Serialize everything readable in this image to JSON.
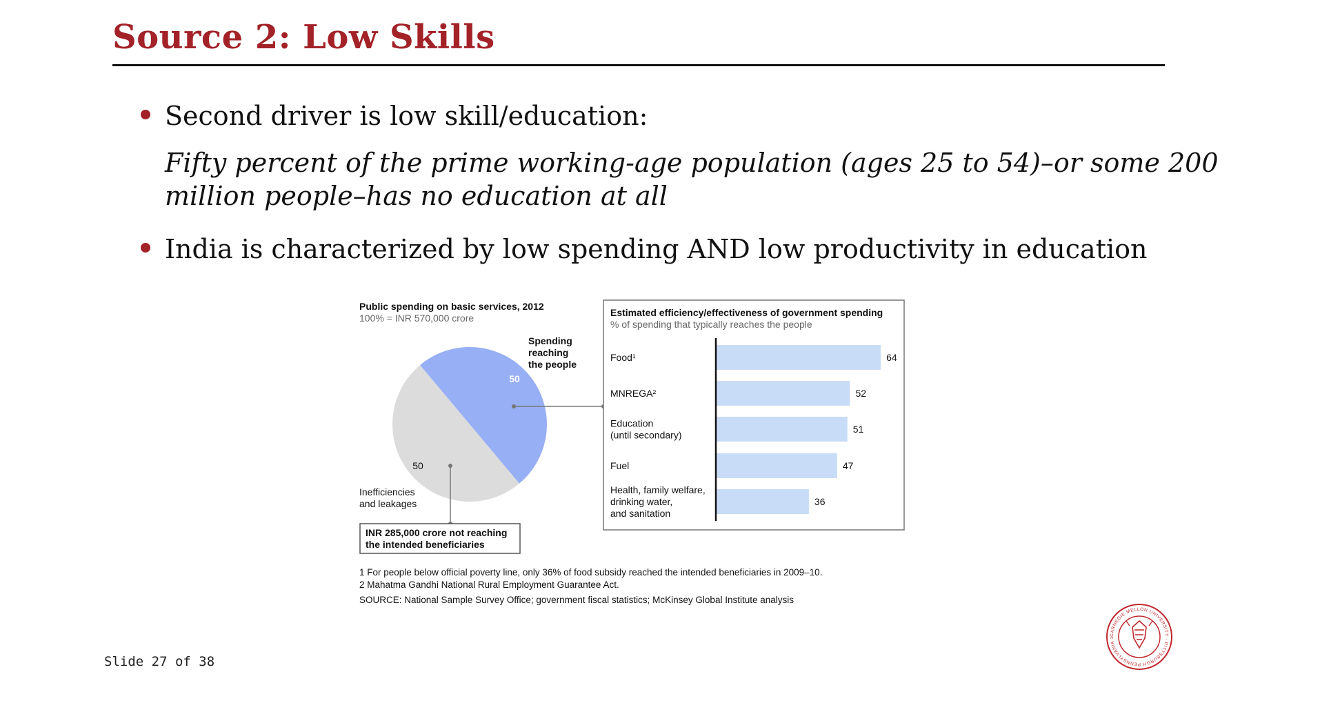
{
  "slide": {
    "title": "Source 2: Low Skills",
    "bullet1": "Second driver is low skill/education:",
    "quote_line1": "Fifty percent of the prime working-age population (ages 25 to 54)–or some 200",
    "quote_line2": "million people–has no education at all",
    "bullet2": "India is characterized by low spending AND low productivity in education",
    "slide_number": "Slide 27 of 38"
  },
  "colors": {
    "title": "#a32228",
    "pie_reaching": "#97aff5",
    "pie_leakage": "#dcdcdc",
    "bar": "#c9dcf7"
  },
  "chart_data": [
    {
      "type": "pie",
      "title": "Public spending on basic services, 2012",
      "subtitle": "100% = INR 570,000 crore",
      "slices": [
        {
          "label": "Spending reaching the people",
          "value": 50
        },
        {
          "label": "Inefficiencies and leakages",
          "value": 50
        }
      ],
      "annotation": "INR 285,000 crore not reaching the intended beneficiaries"
    },
    {
      "type": "bar",
      "orientation": "horizontal",
      "title": "Estimated efficiency/effectiveness of government spending",
      "subtitle": "% of spending that typically reaches the people",
      "categories": [
        "Food¹",
        "MNREGA²",
        "Education (until secondary)",
        "Fuel",
        "Health, family welfare, drinking water, and sanitation"
      ],
      "category_lines": [
        [
          "Food¹"
        ],
        [
          "MNREGA²"
        ],
        [
          "Education",
          "(until secondary)"
        ],
        [
          "Fuel"
        ],
        [
          "Health, family welfare,",
          "drinking water,",
          "and sanitation"
        ]
      ],
      "values": [
        64,
        52,
        51,
        47,
        36
      ]
    }
  ],
  "footnotes": {
    "note1": "1  For people below official poverty line, only 36% of food subsidy reached the intended beneficiaries in 2009–10.",
    "note2": "2  Mahatma Gandhi National Rural Employment Guarantee Act.",
    "source": "SOURCE: National Sample Survey Office; government fiscal statistics; McKinsey Global Institute analysis"
  },
  "logo": {
    "text": "CARNEGIE MELLON UNIVERSITY · PITTSBURGH PENNSYLVANIA 1900"
  }
}
